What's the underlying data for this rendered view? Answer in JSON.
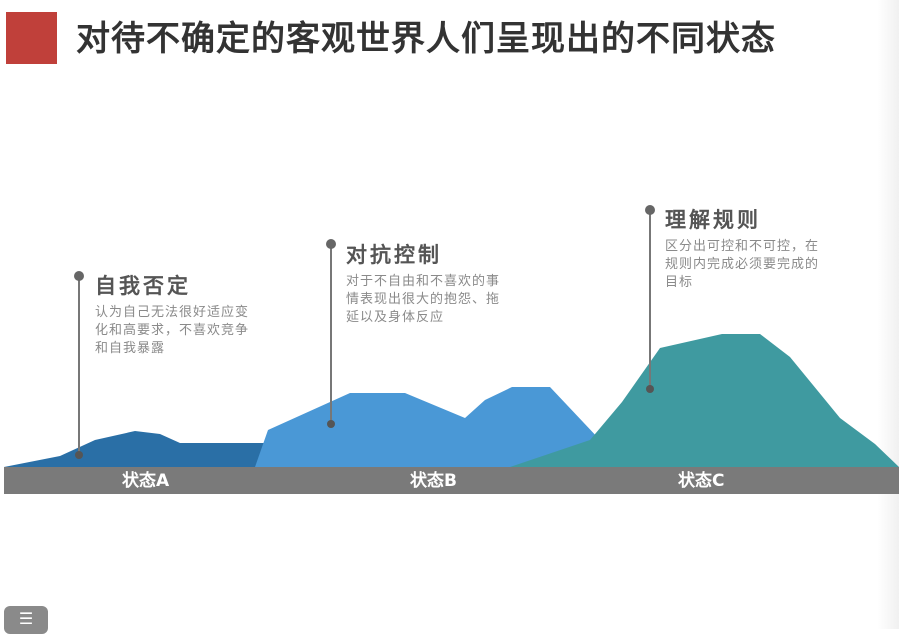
{
  "page": {
    "title": "对待不确定的客观世界人们呈现出的不同状态"
  },
  "colors": {
    "accent": "#c0403a",
    "mountain_a": "#2a6fa6",
    "mountain_b": "#4a98d6",
    "mountain_c": "#3f9aa0",
    "band": "#7a7a7a"
  },
  "annotations": [
    {
      "title": "自我否定",
      "description": "认为自己无法很好适应变化和高要求，不喜欢竞争和自我暴露"
    },
    {
      "title": "对抗控制",
      "description": "对于不自由和不喜欢的事情表现出很大的抱怨、拖延以及身体反应"
    },
    {
      "title": "理解规则",
      "description": "区分出可控和不可控，在规则内完成必须要完成的目标"
    }
  ],
  "states": [
    "状态A",
    "状态B",
    "状态C"
  ],
  "menu": {
    "icon": "list-icon",
    "glyph": "☰"
  }
}
